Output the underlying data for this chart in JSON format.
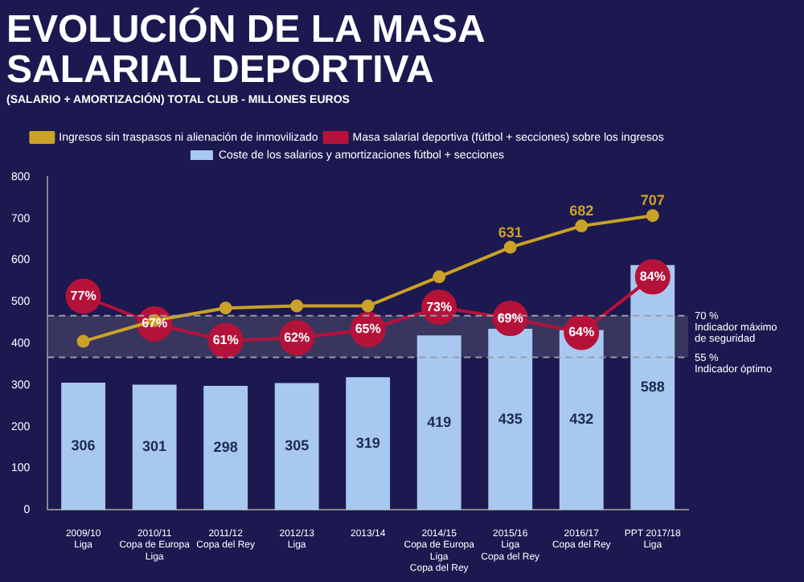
{
  "chart_data": {
    "type": "bar",
    "title": "EVOLUCIÓN DE LA MASA\nSALARIAL DEPORTIVA",
    "subtitle": "(SALARIO + AMORTIZACIÓN) TOTAL CLUB - MILLONES EUROS",
    "categories": [
      "2009/10\nLiga",
      "2010/11\nCopa de Europa\nLiga",
      "2011/12\nCopa del Rey",
      "2012/13\nLiga",
      "2013/14",
      "2014/15\nCopa de Europa\nLiga\nCopa del Rey",
      "2015/16\nLiga\nCopa del Rey",
      "2016/17\nCopa del Rey",
      "PPT 2017/18\nLiga"
    ],
    "series": [
      {
        "name": "Ingresos sin traspasos ni alienación de inmovilizado",
        "type": "line",
        "color": "#c9a227",
        "values": [
          405,
          455,
          485,
          490,
          490,
          560,
          631,
          682,
          707
        ],
        "value_labels": [
          null,
          null,
          null,
          null,
          null,
          null,
          "631",
          "682",
          "707"
        ]
      },
      {
        "name": "Coste de los salarios y amortizaciones fútbol + secciones",
        "color": "#a9c8ef",
        "values": [
          306,
          301,
          298,
          305,
          319,
          419,
          435,
          432,
          588
        ],
        "value_labels": [
          "306",
          "301",
          "298",
          "305",
          "319",
          "419",
          "435",
          "432",
          "588"
        ]
      },
      {
        "name": "Masa salarial deportiva (fútbol + secciones) sobre los ingresos",
        "type": "line",
        "axis": "y2",
        "color": "#b5123a",
        "values": [
          77,
          67,
          61,
          62,
          65,
          73,
          69,
          64,
          84
        ],
        "value_labels": [
          "77%",
          "67%",
          "61%",
          "62%",
          "65%",
          "73%",
          "69%",
          "64%",
          "84%"
        ]
      }
    ],
    "ylim": [
      0,
      800
    ],
    "yticks": [
      0,
      100,
      200,
      300,
      400,
      500,
      600,
      700,
      800
    ],
    "y2lim": [
      0,
      120
    ],
    "ref_lines": [
      {
        "axis": "y2",
        "value": 70,
        "label": "70 %\nIndicador máximo\nde seguridad",
        "line_style": "dashed"
      },
      {
        "axis": "y2",
        "value": 55,
        "label": "55 %\nIndicador óptimo",
        "line_style": "dashed"
      }
    ],
    "bands": [
      {
        "axis": "y2",
        "from": 55,
        "to": 70,
        "color": "#5a5a6e"
      }
    ],
    "grid": false,
    "legend": "top",
    "marker": "circle"
  }
}
